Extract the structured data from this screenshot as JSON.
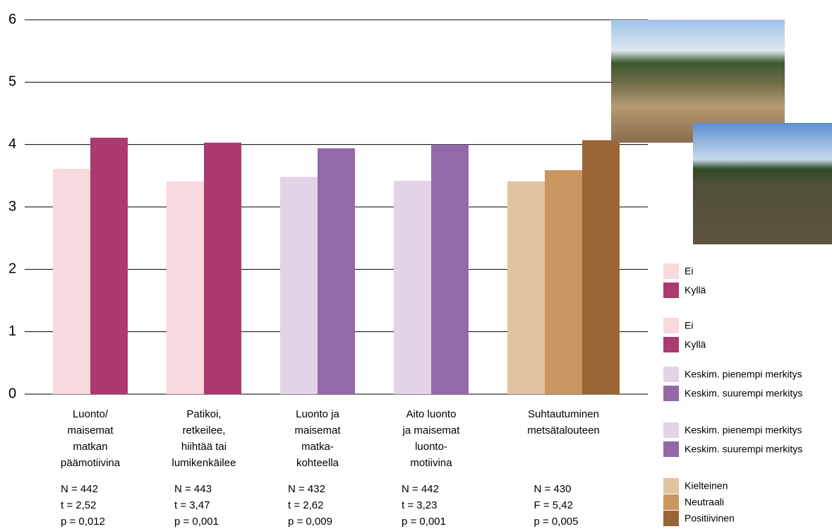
{
  "chart_data": {
    "type": "bar",
    "ylim": [
      0,
      6
    ],
    "yticks": [
      0,
      1,
      2,
      3,
      4,
      5,
      6
    ],
    "grid": true,
    "groups": [
      {
        "label": [
          "Luonto/",
          "maisemat",
          "matkan",
          "päämotiivina"
        ],
        "stats": [
          "N = 442",
          "t = 2,52",
          "p = 0,012"
        ],
        "series": [
          {
            "name": "Ei",
            "color": "#f8d9dd",
            "value": 3.61
          },
          {
            "name": "Kyllä",
            "color": "#ab3a70",
            "value": 4.11
          }
        ]
      },
      {
        "label": [
          "Patikoi,",
          "retkeilee,",
          "hiihtää tai",
          "lumikenkäilee"
        ],
        "stats": [
          "N = 443",
          "t = 3,47",
          "p = 0,001"
        ],
        "series": [
          {
            "name": "Ei",
            "color": "#f8d9dd",
            "value": 3.41
          },
          {
            "name": "Kyllä",
            "color": "#ab3a70",
            "value": 4.03
          }
        ]
      },
      {
        "label": [
          "Luonto ja",
          "maisemat",
          "matka-",
          "kohteella"
        ],
        "stats": [
          "N = 432",
          "t = 2,62",
          "p = 0,009"
        ],
        "series": [
          {
            "name": "Keskim. pienempi merkitys",
            "color": "#e3d3e6",
            "value": 3.48
          },
          {
            "name": "Keskim. suurempi merkitys",
            "color": "#9469a8",
            "value": 3.94
          }
        ]
      },
      {
        "label": [
          "Aito luonto",
          "ja maisemat",
          "luonto-",
          "motiivina"
        ],
        "stats": [
          "N = 442",
          "t = 3,23",
          "p = 0,001"
        ],
        "series": [
          {
            "name": "Keskim. pienempi merkitys",
            "color": "#e3d3e6",
            "value": 3.42
          },
          {
            "name": "Keskim. suurempi merkitys",
            "color": "#9469a8",
            "value": 4.0
          }
        ]
      },
      {
        "label": [
          "Suhtautuminen",
          "metsätalouteen"
        ],
        "stats": [
          "N = 430",
          "F = 5,42",
          "p = 0,005"
        ],
        "series": [
          {
            "name": "Kielteinen",
            "color": "#e2c3a0",
            "value": 3.41
          },
          {
            "name": "Neutraali",
            "color": "#c99660",
            "value": 3.59
          },
          {
            "name": "Positiivinen",
            "color": "#9a6535",
            "value": 4.07
          }
        ]
      }
    ]
  }
}
